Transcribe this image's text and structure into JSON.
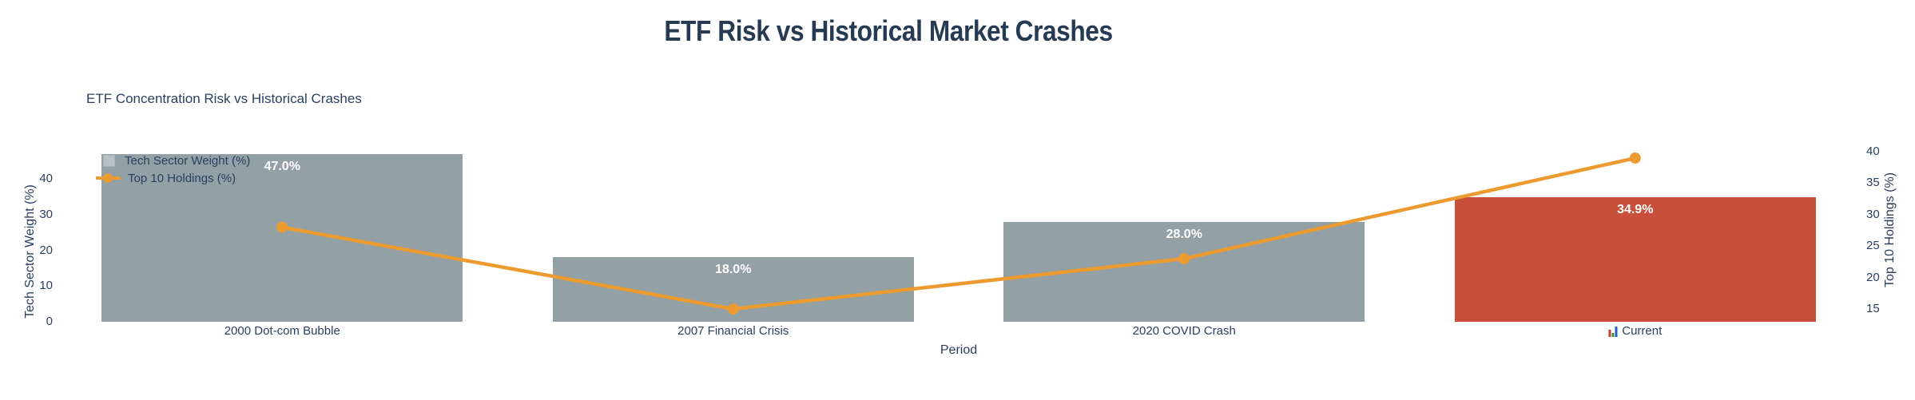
{
  "page": {
    "title": "ETF Risk vs Historical Market Crashes"
  },
  "chart_data": {
    "type": "bar",
    "title": "ETF Concentration Risk vs Historical Crashes",
    "categories": [
      "2000 Dot-com Bubble",
      "2007 Financial Crisis",
      "2020 COVID Crash",
      "Current"
    ],
    "x_icons": [
      "",
      "",
      "",
      "bar-chart-icon"
    ],
    "series": [
      {
        "name": "Tech Sector Weight (%)",
        "type": "bar",
        "axis": "left",
        "values": [
          47.0,
          18.0,
          28.0,
          34.9
        ],
        "labels": [
          "47.0%",
          "18.0%",
          "28.0%",
          "34.9%"
        ],
        "colors": [
          "#93a0a5",
          "#93a0a5",
          "#93a0a5",
          "#c8503a"
        ]
      },
      {
        "name": "Top 10 Holdings (%)",
        "type": "line",
        "axis": "right",
        "values": [
          28,
          15,
          23,
          39
        ],
        "color": "#ec9b31"
      }
    ],
    "xlabel": "Period",
    "left_axis": {
      "title": "Tech Sector Weight (%)",
      "ticks": [
        0,
        10,
        20,
        30,
        40
      ],
      "range": [
        0,
        49
      ]
    },
    "right_axis": {
      "title": "Top 10 Holdings (%)",
      "ticks": [
        15,
        20,
        25,
        30,
        35,
        40
      ],
      "range": [
        13,
        41
      ]
    },
    "legend": {
      "position": "top-left",
      "entries": [
        "Tech Sector Weight (%)",
        "Top 10 Holdings (%)"
      ]
    },
    "grid": false,
    "colors": {
      "bar_gray": "#93a0a5",
      "bar_highlight_red": "#c8503a",
      "line_orange": "#ec9b31",
      "text_navy": "#2a3f5f",
      "title_navy": "#263a53"
    }
  }
}
